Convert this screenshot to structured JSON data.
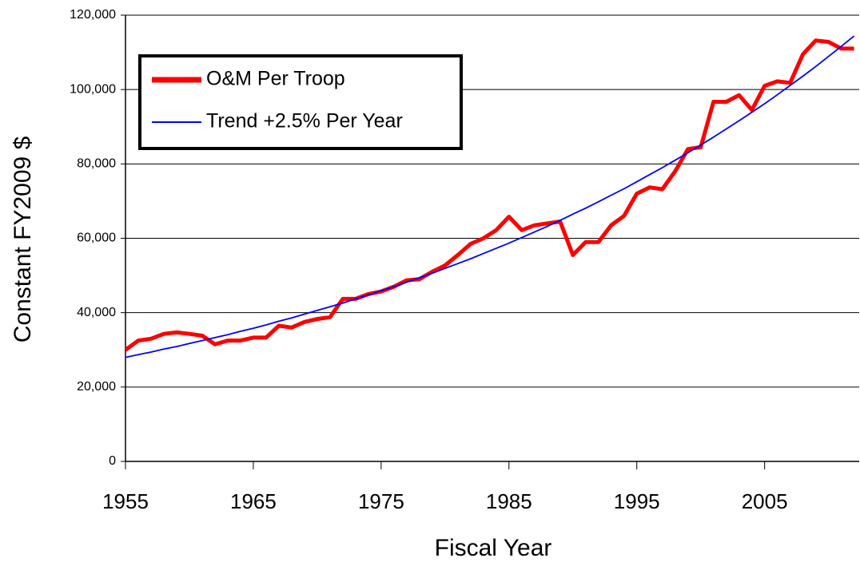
{
  "chart_data": {
    "type": "line",
    "xlabel": "Fiscal Year",
    "ylabel": "Constant FY2009 $",
    "x": [
      1955,
      1956,
      1957,
      1958,
      1959,
      1960,
      1961,
      1962,
      1963,
      1964,
      1965,
      1966,
      1967,
      1968,
      1969,
      1970,
      1971,
      1972,
      1973,
      1974,
      1975,
      1976,
      1977,
      1978,
      1979,
      1980,
      1981,
      1982,
      1983,
      1984,
      1985,
      1986,
      1987,
      1988,
      1989,
      1990,
      1991,
      1992,
      1993,
      1994,
      1995,
      1996,
      1997,
      1998,
      1999,
      2000,
      2001,
      2002,
      2003,
      2004,
      2005,
      2006,
      2007,
      2008,
      2009,
      2010,
      2011,
      2012
    ],
    "series": [
      {
        "name": "O&M Per Troop",
        "color": "#ff0000",
        "values": [
          30000,
          32500,
          33000,
          34300,
          34700,
          34300,
          33800,
          31500,
          32500,
          32500,
          33300,
          33300,
          36500,
          36000,
          37500,
          38300,
          38800,
          43700,
          43700,
          45000,
          45700,
          47000,
          48700,
          49000,
          51000,
          52700,
          55500,
          58500,
          60000,
          62200,
          65800,
          62200,
          63500,
          64000,
          64500,
          55500,
          59000,
          59000,
          63500,
          66000,
          72000,
          73700,
          73200,
          78000,
          84000,
          84500,
          96700,
          96700,
          98500,
          94500,
          101000,
          102200,
          101800,
          109500,
          113200,
          112800,
          111000,
          111000
        ]
      },
      {
        "name": "Trend +2.5% Per Year",
        "color": "#0000ff",
        "values": [
          28000,
          28700,
          29400,
          30200,
          30900,
          31700,
          32500,
          33300,
          34100,
          35000,
          35800,
          36700,
          37700,
          38600,
          39600,
          40600,
          41600,
          42600,
          43700,
          44800,
          45900,
          47000,
          48200,
          49400,
          50600,
          51900,
          53200,
          54500,
          55900,
          57300,
          58700,
          60200,
          61700,
          63200,
          64800,
          66500,
          68100,
          69800,
          71600,
          73300,
          75200,
          77100,
          79000,
          81000,
          83000,
          85100,
          87200,
          89400,
          91600,
          93900,
          96200,
          98600,
          101100,
          103600,
          106200,
          108900,
          111600,
          114400
        ]
      }
    ],
    "xlim": [
      1955,
      2012.4
    ],
    "xticks": [
      1955,
      1965,
      1975,
      1985,
      1995,
      2005
    ],
    "ylim": [
      0,
      120000
    ],
    "yticks": [
      0,
      {
        "value": 20000,
        "label": "20,000"
      },
      {
        "value": 40000,
        "label": "40,000"
      },
      {
        "value": 60000,
        "label": "60,000"
      },
      {
        "value": 80000,
        "label": "80,000"
      },
      {
        "value": 100000,
        "label": "100,000"
      },
      {
        "value": 120000,
        "label": "120,000"
      }
    ],
    "grid": true,
    "legend": "upper left"
  }
}
